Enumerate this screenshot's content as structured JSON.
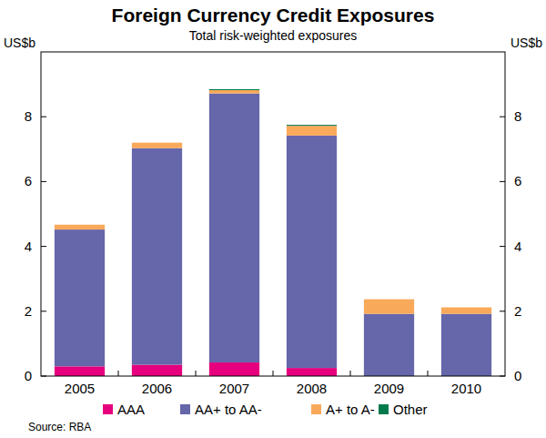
{
  "chart_data": {
    "type": "bar",
    "title": "Foreign Currency Credit Exposures",
    "subtitle": "Total risk-weighted exposures",
    "y_label": "US$b",
    "source": "Source: RBA",
    "categories": [
      "2005",
      "2006",
      "2007",
      "2008",
      "2009",
      "2010"
    ],
    "stacked": true,
    "grid": false,
    "legend": "bottom",
    "ylim": [
      0,
      10
    ],
    "yticks": [
      0,
      2,
      4,
      6,
      8
    ],
    "series": [
      {
        "name": "AAA",
        "color": "#e6007e",
        "values": [
          0.3,
          0.35,
          0.42,
          0.25,
          0,
          0
        ]
      },
      {
        "name": "AA+ to AA-",
        "color": "#6666aa",
        "values": [
          4.22,
          6.68,
          8.3,
          7.17,
          1.92,
          1.92
        ]
      },
      {
        "name": "A+ to A-",
        "color": "#f9a95a",
        "values": [
          0.15,
          0.17,
          0.1,
          0.3,
          0.45,
          0.2
        ]
      },
      {
        "name": "Other",
        "color": "#007a4d",
        "values": [
          0,
          0,
          0.03,
          0.03,
          0,
          0
        ]
      }
    ]
  }
}
